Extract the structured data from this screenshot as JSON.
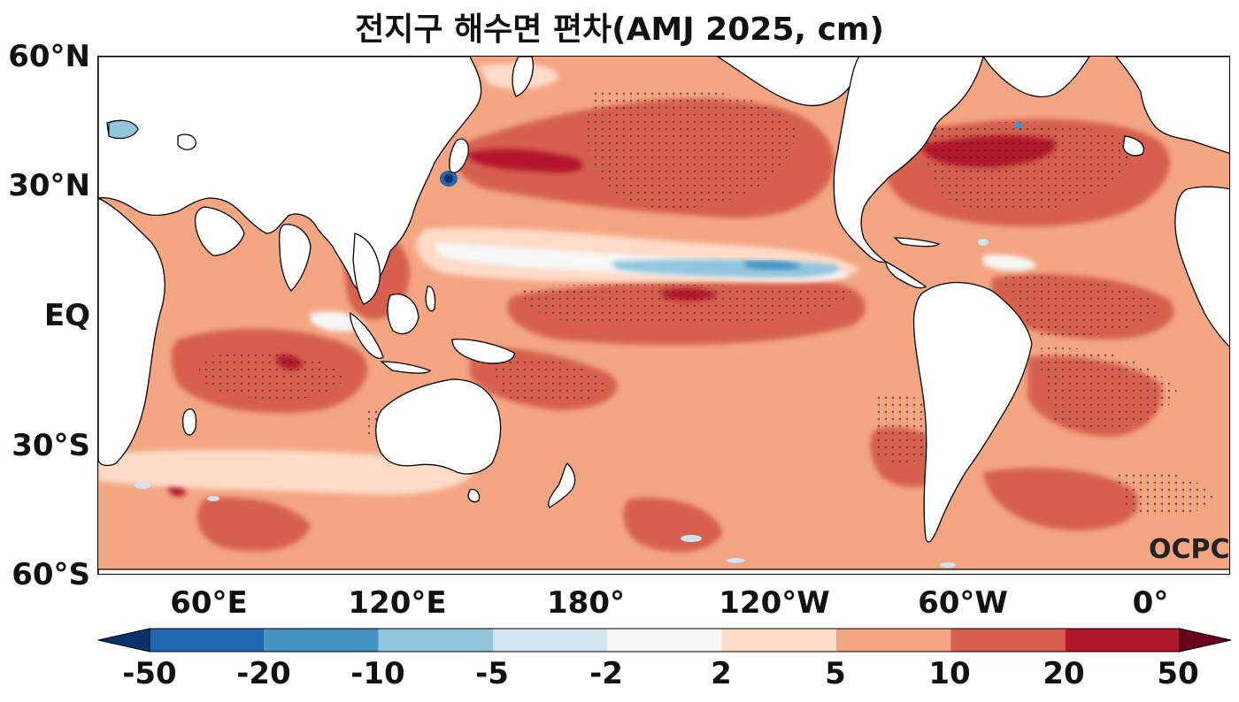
{
  "title": "전지구 해수면 편차(AMJ 2025, cm)",
  "watermark": "OCPC",
  "lat_labels": [
    "60°N",
    "30°N",
    "EQ",
    "30°S",
    "60°S"
  ],
  "lon_labels": [
    "60°E",
    "120°E",
    "180°",
    "120°W",
    "60°W",
    "0°"
  ],
  "colorbar": {
    "ticks": [
      "-50",
      "-20",
      "-10",
      "-5",
      "-2",
      "2",
      "5",
      "10",
      "20",
      "50"
    ],
    "colors": [
      "#08306b",
      "#2166ac",
      "#4393c3",
      "#92c5de",
      "#d1e5f0",
      "#f7f7f7",
      "#fddbc7",
      "#f4a582",
      "#d6604d",
      "#b2182b",
      "#67001f"
    ]
  },
  "land_color": "#ffffff",
  "stipple_color": "#3a2a2a"
}
